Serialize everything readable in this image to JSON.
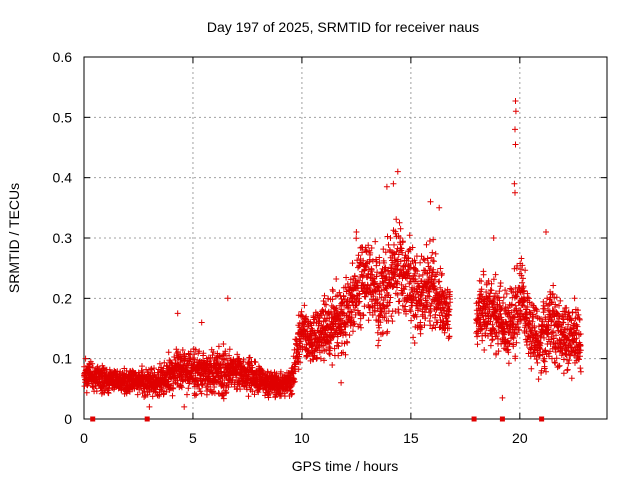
{
  "chart_data": {
    "type": "scatter",
    "title": "Day 197 of 2025, SRMTID for receiver naus",
    "xlabel": "GPS time / hours",
    "ylabel": "SRMTID / TECUs",
    "xlim": [
      0,
      24
    ],
    "ylim": [
      0,
      0.6
    ],
    "xticks": [
      "0",
      "5",
      "10",
      "15",
      "20"
    ],
    "yticks": [
      "0",
      "0.1",
      "0.2",
      "0.3",
      "0.4",
      "0.5",
      "0.6"
    ],
    "grid": true,
    "marker": "plus",
    "color": "#e00000",
    "data_gap_markers_hours": [
      0.4,
      2.9,
      17.9,
      19.2,
      21.0
    ],
    "series": [
      {
        "name": "SRMTID",
        "profile_hours": [
          0,
          0.5,
          1,
          1.5,
          2,
          2.5,
          3,
          3.5,
          4,
          4.5,
          5,
          5.5,
          6,
          6.5,
          7,
          7.5,
          8,
          8.5,
          9,
          9.5,
          10,
          10.5,
          11,
          11.5,
          12,
          12.5,
          13,
          13.5,
          14,
          14.5,
          15,
          15.5,
          16,
          16.5,
          18,
          18.5,
          19,
          19.5,
          20,
          20.5,
          21,
          21.5,
          22,
          22.5,
          22.8
        ],
        "profile_median": [
          0.075,
          0.07,
          0.065,
          0.065,
          0.06,
          0.065,
          0.06,
          0.06,
          0.075,
          0.08,
          0.08,
          0.075,
          0.075,
          0.08,
          0.075,
          0.07,
          0.065,
          0.06,
          0.055,
          0.06,
          0.15,
          0.12,
          0.15,
          0.16,
          0.17,
          0.22,
          0.24,
          0.2,
          0.23,
          0.25,
          0.22,
          0.2,
          0.23,
          0.18,
          0.17,
          0.18,
          0.17,
          0.15,
          0.2,
          0.14,
          0.13,
          0.16,
          0.13,
          0.14,
          0.12
        ],
        "profile_spread": [
          0.025,
          0.025,
          0.025,
          0.02,
          0.02,
          0.02,
          0.025,
          0.03,
          0.035,
          0.04,
          0.04,
          0.035,
          0.04,
          0.045,
          0.035,
          0.03,
          0.03,
          0.025,
          0.02,
          0.03,
          0.05,
          0.045,
          0.06,
          0.07,
          0.07,
          0.08,
          0.08,
          0.08,
          0.09,
          0.08,
          0.07,
          0.07,
          0.08,
          0.06,
          0.06,
          0.07,
          0.07,
          0.06,
          0.08,
          0.06,
          0.07,
          0.07,
          0.06,
          0.06,
          0.05
        ],
        "segments_hours": [
          [
            0,
            9.9
          ],
          [
            9.9,
            16.8
          ],
          [
            18.0,
            22.8
          ]
        ],
        "outliers": [
          {
            "x": 19.8,
            "y": 0.527
          },
          {
            "x": 19.82,
            "y": 0.51
          },
          {
            "x": 19.78,
            "y": 0.48
          },
          {
            "x": 19.8,
            "y": 0.455
          },
          {
            "x": 19.75,
            "y": 0.39
          },
          {
            "x": 19.78,
            "y": 0.375
          },
          {
            "x": 14.4,
            "y": 0.41
          },
          {
            "x": 14.2,
            "y": 0.39
          },
          {
            "x": 13.9,
            "y": 0.385
          },
          {
            "x": 15.9,
            "y": 0.36
          },
          {
            "x": 16.3,
            "y": 0.35
          },
          {
            "x": 12.5,
            "y": 0.31
          },
          {
            "x": 21.2,
            "y": 0.31
          },
          {
            "x": 18.8,
            "y": 0.3
          },
          {
            "x": 6.6,
            "y": 0.2
          },
          {
            "x": 4.3,
            "y": 0.175
          },
          {
            "x": 5.4,
            "y": 0.16
          },
          {
            "x": 3.0,
            "y": 0.02
          },
          {
            "x": 4.6,
            "y": 0.02
          },
          {
            "x": 11.8,
            "y": 0.06
          },
          {
            "x": 19.2,
            "y": 0.035
          }
        ]
      }
    ]
  }
}
